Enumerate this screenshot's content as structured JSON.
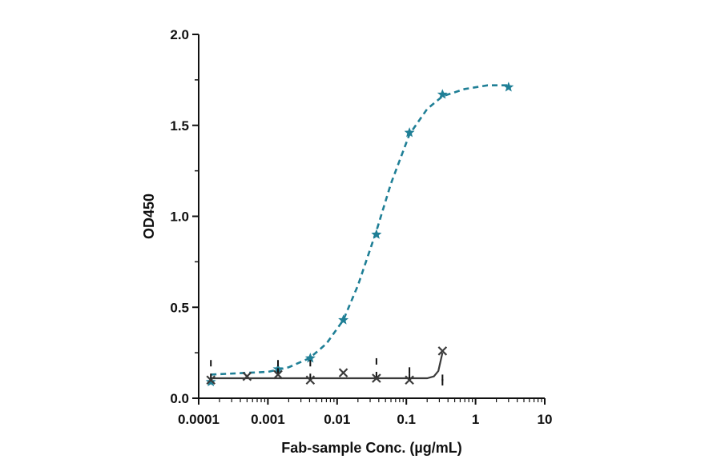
{
  "chart_data": {
    "type": "scatter",
    "title": "",
    "xlabel": "Fab-sample Conc. (µg/mL)",
    "ylabel": "OD450",
    "xscale": "log",
    "xlim": [
      0.0001,
      10
    ],
    "ylim": [
      0,
      2.0
    ],
    "x_ticks": [
      "0.0001",
      "0.001",
      "0.01",
      "0.1",
      "1",
      "10"
    ],
    "y_ticks": [
      "0.0",
      "0.5",
      "1.0",
      "1.5",
      "2.0"
    ],
    "grid": false,
    "legend": "none",
    "series": [
      {
        "marker": "star",
        "line_style": "dashed",
        "color": "#1f7f96",
        "points": [
          {
            "x": 0.00015,
            "y": 0.09
          },
          {
            "x": 0.0014,
            "y": 0.16
          },
          {
            "x": 0.0041,
            "y": 0.22
          },
          {
            "x": 0.0123,
            "y": 0.43
          },
          {
            "x": 0.037,
            "y": 0.9
          },
          {
            "x": 0.111,
            "y": 1.46
          },
          {
            "x": 0.333,
            "y": 1.67
          },
          {
            "x": 3.0,
            "y": 1.71
          }
        ],
        "fit": [
          {
            "x": 0.00015,
            "y": 0.13
          },
          {
            "x": 0.001,
            "y": 0.145
          },
          {
            "x": 0.002,
            "y": 0.17
          },
          {
            "x": 0.004,
            "y": 0.22
          },
          {
            "x": 0.007,
            "y": 0.3
          },
          {
            "x": 0.0123,
            "y": 0.43
          },
          {
            "x": 0.02,
            "y": 0.62
          },
          {
            "x": 0.037,
            "y": 0.92
          },
          {
            "x": 0.06,
            "y": 1.18
          },
          {
            "x": 0.111,
            "y": 1.45
          },
          {
            "x": 0.2,
            "y": 1.59
          },
          {
            "x": 0.333,
            "y": 1.66
          },
          {
            "x": 0.7,
            "y": 1.7
          },
          {
            "x": 1.5,
            "y": 1.72
          },
          {
            "x": 3.0,
            "y": 1.72
          }
        ]
      },
      {
        "marker": "x",
        "line_style": "solid",
        "color": "#3a3a3a",
        "points": [
          {
            "x": 0.00015,
            "y": 0.1
          },
          {
            "x": 0.0005,
            "y": 0.12
          },
          {
            "x": 0.0014,
            "y": 0.13
          },
          {
            "x": 0.0041,
            "y": 0.1
          },
          {
            "x": 0.0123,
            "y": 0.14
          },
          {
            "x": 0.037,
            "y": 0.11
          },
          {
            "x": 0.111,
            "y": 0.1
          },
          {
            "x": 0.333,
            "y": 0.26
          }
        ],
        "fit": [
          {
            "x": 0.00015,
            "y": 0.11
          },
          {
            "x": 0.01,
            "y": 0.11
          },
          {
            "x": 0.2,
            "y": 0.11
          },
          {
            "x": 0.25,
            "y": 0.12
          },
          {
            "x": 0.29,
            "y": 0.15
          },
          {
            "x": 0.333,
            "y": 0.25
          }
        ],
        "error_bars": [
          {
            "x": 0.00015,
            "y_low": 0.1,
            "y_high": 0.21
          },
          {
            "x": 0.0014,
            "y_low": 0.13,
            "y_high": 0.21
          },
          {
            "x": 0.0041,
            "y_low": 0.1,
            "y_high": 0.21
          },
          {
            "x": 0.037,
            "y_low": 0.11,
            "y_high": 0.22
          },
          {
            "x": 0.111,
            "y_low": 0.1,
            "y_high": 0.17
          },
          {
            "x": 0.333,
            "y_low": 0.07,
            "y_high": 0.13
          }
        ]
      }
    ]
  }
}
